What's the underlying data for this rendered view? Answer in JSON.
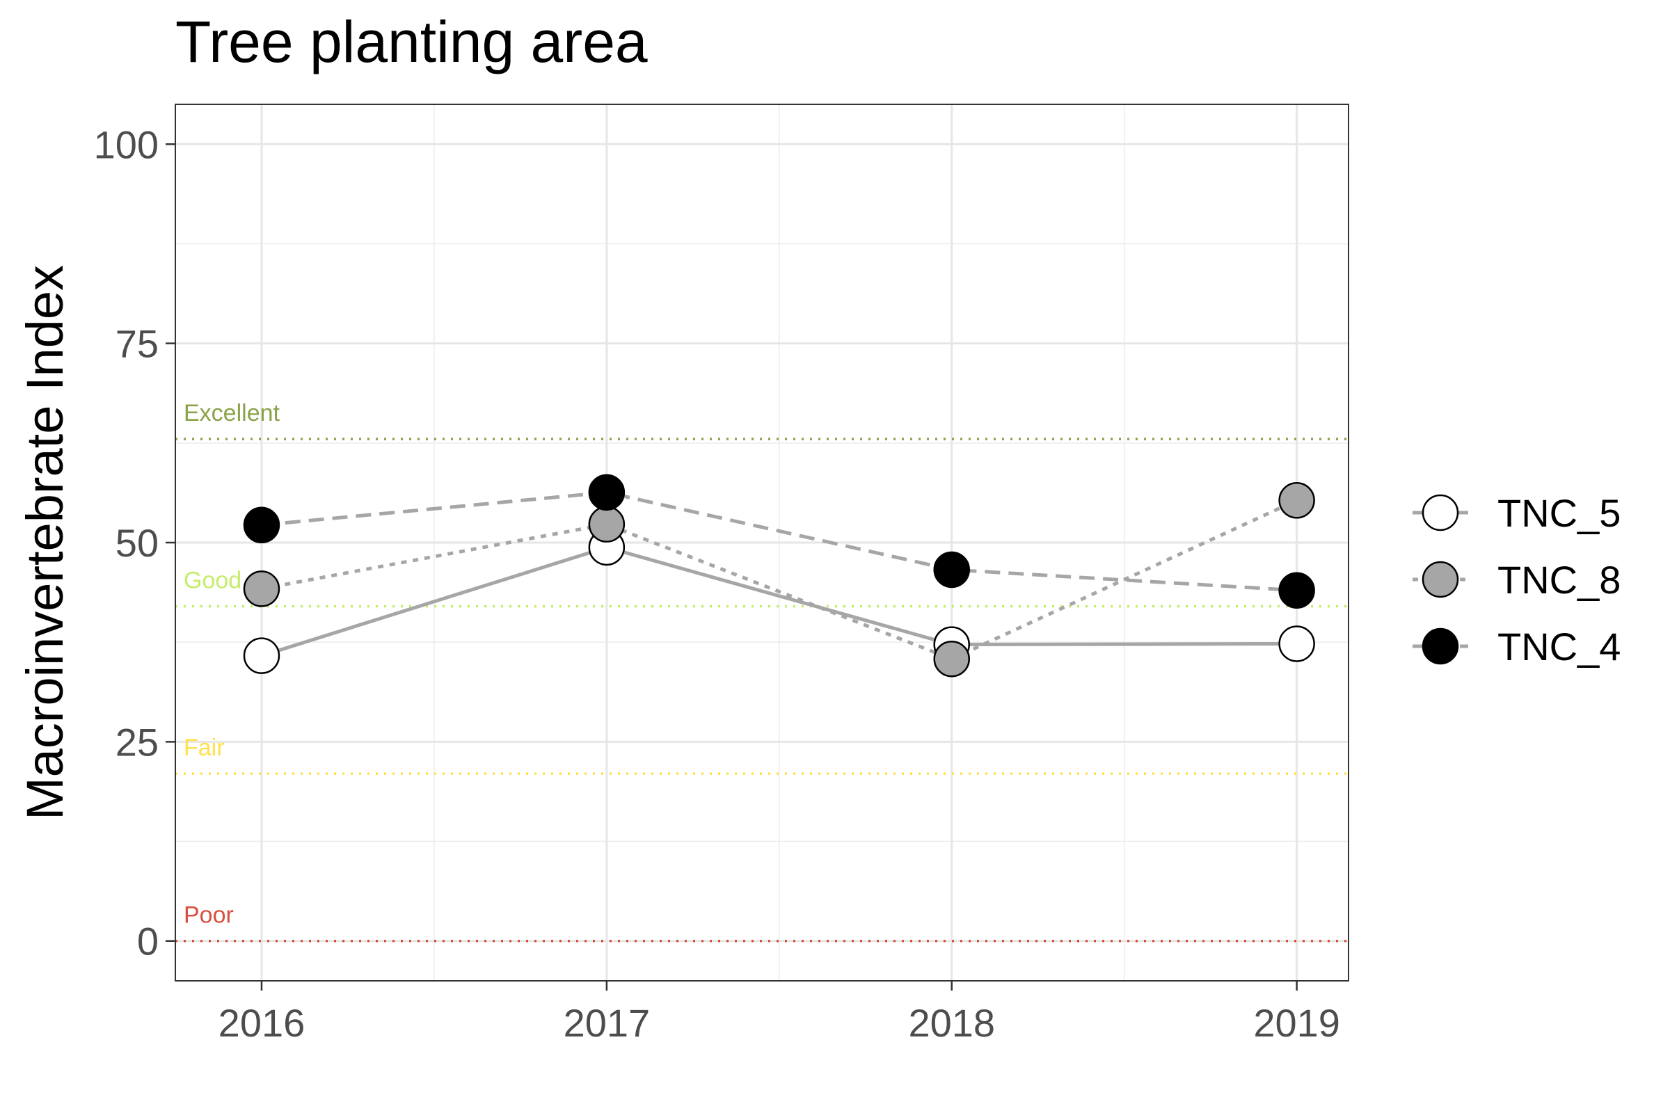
{
  "chart_data": {
    "type": "line",
    "title": "Tree planting area",
    "xlabel": "",
    "ylabel": "Macroinvertebrate Index",
    "x": [
      2016,
      2017,
      2018,
      2019
    ],
    "x_tick_labels": [
      "2016",
      "2017",
      "2018",
      "2019"
    ],
    "ylim": [
      -5,
      105
    ],
    "y_ticks": [
      0,
      25,
      50,
      75,
      100
    ],
    "y_tick_labels": [
      "0",
      "25",
      "50",
      "75",
      "100"
    ],
    "grid": true,
    "legend_position": "right",
    "series": [
      {
        "name": "TNC_5",
        "values": [
          35.8,
          49.4,
          37.2,
          37.3
        ],
        "line_style": "solid",
        "line_color": "#a6a6a6",
        "marker_fill": "#ffffff"
      },
      {
        "name": "TNC_8",
        "values": [
          44.2,
          52.3,
          35.4,
          55.3
        ],
        "line_style": "dotted",
        "line_color": "#a6a6a6",
        "marker_fill": "#a6a6a6"
      },
      {
        "name": "TNC_4",
        "values": [
          52.2,
          56.3,
          46.6,
          44.0
        ],
        "line_style": "dashed",
        "line_color": "#a6a6a6",
        "marker_fill": "#000000"
      }
    ],
    "reference_lines": [
      {
        "label": "Excellent",
        "value": 63,
        "color": "#8aa34a"
      },
      {
        "label": "Good",
        "value": 42,
        "color": "#c5ec6a"
      },
      {
        "label": "Fair",
        "value": 21,
        "color": "#ffe14d"
      },
      {
        "label": "Poor",
        "value": 0,
        "color": "#d94f3f"
      }
    ]
  }
}
